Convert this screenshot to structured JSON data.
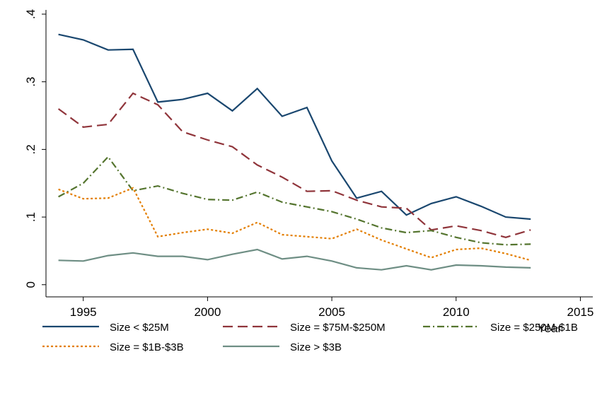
{
  "chart_data": {
    "type": "line",
    "x": [
      1994,
      1995,
      1996,
      1997,
      1998,
      1999,
      2000,
      2001,
      2002,
      2003,
      2004,
      2005,
      2006,
      2007,
      2008,
      2009,
      2010,
      2011,
      2012,
      2013
    ],
    "x_label": "Year",
    "xlim": [
      1993.5,
      2015.5
    ],
    "xticks": [
      1995,
      2000,
      2005,
      2010,
      2015
    ],
    "ylim": [
      -0.018,
      0.4
    ],
    "yticks": [
      0,
      {
        "value": 0.1,
        "label": ".1"
      },
      {
        "value": 0.2,
        "label": ".2"
      },
      {
        "value": 0.3,
        "label": ".3"
      },
      {
        "value": 0.4,
        "label": ".4"
      }
    ],
    "series": [
      {
        "name": "Size < $25M",
        "color": "#1a476f",
        "dash": "none",
        "values": [
          0.37,
          0.362,
          0.347,
          0.348,
          0.27,
          0.274,
          0.283,
          0.257,
          0.29,
          0.249,
          0.262,
          0.183,
          0.128,
          0.138,
          0.103,
          0.12,
          0.13,
          0.116,
          0.1,
          0.097
        ]
      },
      {
        "name": "Size = $75M-$250M",
        "color": "#90353b",
        "dash": "14 7",
        "values": [
          0.26,
          0.233,
          0.237,
          0.283,
          0.266,
          0.226,
          0.214,
          0.204,
          0.177,
          0.159,
          0.138,
          0.139,
          0.125,
          0.115,
          0.113,
          0.081,
          0.087,
          0.08,
          0.07,
          0.081
        ]
      },
      {
        "name": "Size = $250M-$1B",
        "color": "#55752f",
        "dash": "10 4 2 4",
        "values": [
          0.13,
          0.15,
          0.189,
          0.139,
          0.146,
          0.135,
          0.126,
          0.125,
          0.137,
          0.122,
          0.115,
          0.108,
          0.097,
          0.084,
          0.077,
          0.08,
          0.07,
          0.062,
          0.059,
          0.06
        ]
      },
      {
        "name": "Size = $1B-$3B",
        "color": "#e37e00",
        "dash": "3 3",
        "values": [
          0.141,
          0.127,
          0.128,
          0.143,
          0.071,
          0.077,
          0.082,
          0.076,
          0.092,
          0.074,
          0.071,
          0.068,
          0.082,
          0.066,
          0.053,
          0.04,
          0.052,
          0.054,
          0.046,
          0.036
        ]
      },
      {
        "name": "Size > $3B",
        "color": "#6e8e84",
        "dash": "none",
        "values": [
          0.036,
          0.035,
          0.043,
          0.047,
          0.042,
          0.042,
          0.037,
          0.045,
          0.052,
          0.038,
          0.042,
          0.035,
          0.025,
          0.022,
          0.028,
          0.022,
          0.029,
          0.028,
          0.026,
          0.025
        ]
      }
    ]
  }
}
